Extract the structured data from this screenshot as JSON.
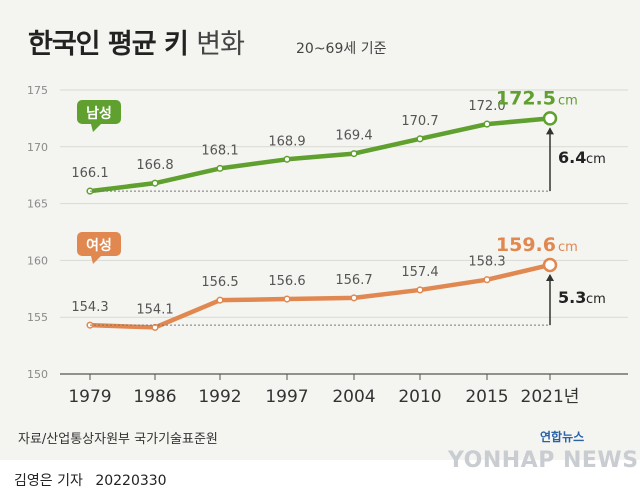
{
  "title": "한국인 평균 키",
  "title_suffix": "변화",
  "subtitle": "20~69세 기준",
  "source": "자료/산업통상자원부 국가기술표준원",
  "byline": "김영은 기자",
  "date": "20220330",
  "logo": "연합뉴스",
  "watermark": "YONHAP NEWS",
  "chart_data": {
    "type": "line",
    "title": "한국인 평균 키 변화",
    "subtitle": "20~69세 기준",
    "x": [
      "1979",
      "1986",
      "1992",
      "1997",
      "2004",
      "2010",
      "2015",
      "2021년"
    ],
    "ylim": [
      150,
      175
    ],
    "yticks": [
      150,
      155,
      160,
      165,
      170,
      175
    ],
    "grid": true,
    "series": [
      {
        "name": "남성",
        "color": "#5fa02e",
        "labels": [
          "166.1",
          "166.8",
          "168.1",
          "168.9",
          "169.4",
          "170.7",
          "172.0",
          "172.5"
        ],
        "values": [
          166.1,
          166.8,
          168.1,
          168.9,
          169.4,
          170.7,
          172.0,
          172.5
        ],
        "last_unit": "cm",
        "change_value": "6.4",
        "change_unit": "cm"
      },
      {
        "name": "여성",
        "color": "#e08850",
        "labels": [
          "154.3",
          "154.1",
          "156.5",
          "156.6",
          "156.7",
          "157.4",
          "158.3",
          "159.6"
        ],
        "values": [
          154.3,
          154.1,
          156.5,
          156.6,
          156.7,
          157.4,
          158.3,
          159.6
        ],
        "last_unit": "cm",
        "change_value": "5.3",
        "change_unit": "cm"
      }
    ]
  }
}
